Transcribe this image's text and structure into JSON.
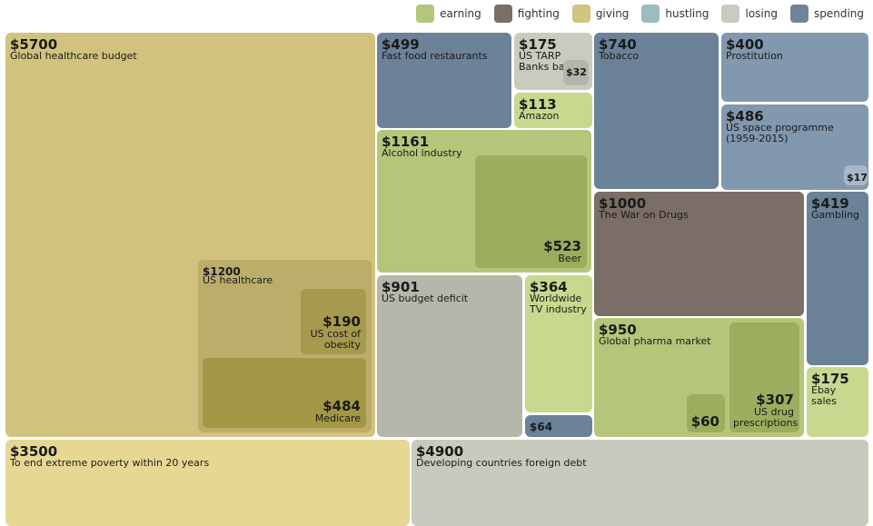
{
  "legend": [
    {
      "name": "earning",
      "color": "#b3c67a"
    },
    {
      "name": "fighting",
      "color": "#7a6e66"
    },
    {
      "name": "giving",
      "color": "#d3c47f"
    },
    {
      "name": "hustling",
      "color": "#9bbcc2"
    },
    {
      "name": "losing",
      "color": "#c9cbbf"
    },
    {
      "name": "spending",
      "color": "#6f849a"
    }
  ],
  "chart_data": {
    "type": "treemap",
    "unit": "$ billions",
    "items": [
      {
        "value": "$5700",
        "label": "Global healthcare budget",
        "category": "giving",
        "color": "#d1c37e"
      },
      {
        "value": "$1200",
        "label": "US healthcare",
        "category": "giving",
        "color": "#bcae6a"
      },
      {
        "value": "$190",
        "label": "US cost of obesity",
        "category": "giving",
        "color": "#a69a4f"
      },
      {
        "value": "$484",
        "label": "Medicare",
        "category": "giving",
        "color": "#a39745"
      },
      {
        "value": "$3500",
        "label": "To end extreme poverty within 20 years",
        "category": "giving",
        "color": "#e6d893"
      },
      {
        "value": "$499",
        "label": "Fast food restaurants",
        "category": "spending",
        "color": "#6b8299"
      },
      {
        "value": "$175",
        "label": "US TARP Banks bailout",
        "category": "losing",
        "color": "#c9cbbf"
      },
      {
        "value": "$32",
        "label": "",
        "category": "losing",
        "color": "#b4b6ab"
      },
      {
        "value": "$113",
        "label": "Amazon",
        "category": "earning",
        "color": "#c8d98f"
      },
      {
        "value": "$1161",
        "label": "Alcohol industry",
        "category": "earning",
        "color": "#b3c67a"
      },
      {
        "value": "$523",
        "label": "Beer",
        "category": "earning",
        "color": "#9bae5e"
      },
      {
        "value": "$901",
        "label": "US budget deficit",
        "category": "losing",
        "color": "#b6b7ab"
      },
      {
        "value": "$364",
        "label": "Worldwide TV industry",
        "category": "earning",
        "color": "#c8d98f"
      },
      {
        "value": "$64",
        "label": "",
        "category": "spending",
        "color": "#6b8299"
      },
      {
        "value": "$740",
        "label": "Tobacco",
        "category": "spending",
        "color": "#6b8299"
      },
      {
        "value": "$400",
        "label": "Prostitution",
        "category": "spending",
        "color": "#8198ae"
      },
      {
        "value": "$486",
        "label": "US space programme (1959-2015)",
        "category": "spending",
        "color": "#8198ae"
      },
      {
        "value": "$17",
        "label": "",
        "category": "spending",
        "color": "#a9b8c6"
      },
      {
        "value": "$1000",
        "label": "The War on Drugs",
        "category": "fighting",
        "color": "#7a6e66"
      },
      {
        "value": "$419",
        "label": "Gambling",
        "category": "spending",
        "color": "#6b8299"
      },
      {
        "value": "$950",
        "label": "Global pharma market",
        "category": "earning",
        "color": "#b3c67a"
      },
      {
        "value": "$307",
        "label": "US drug prescriptions",
        "category": "earning",
        "color": "#9bae5e"
      },
      {
        "value": "$60",
        "label": "",
        "category": "earning",
        "color": "#9bae5e"
      },
      {
        "value": "$175",
        "label": "Ebay sales",
        "category": "earning",
        "color": "#c8d98f"
      },
      {
        "value": "$4900",
        "label": "Developing countries foreign debt",
        "category": "losing",
        "color": "#c8cabd"
      }
    ]
  }
}
